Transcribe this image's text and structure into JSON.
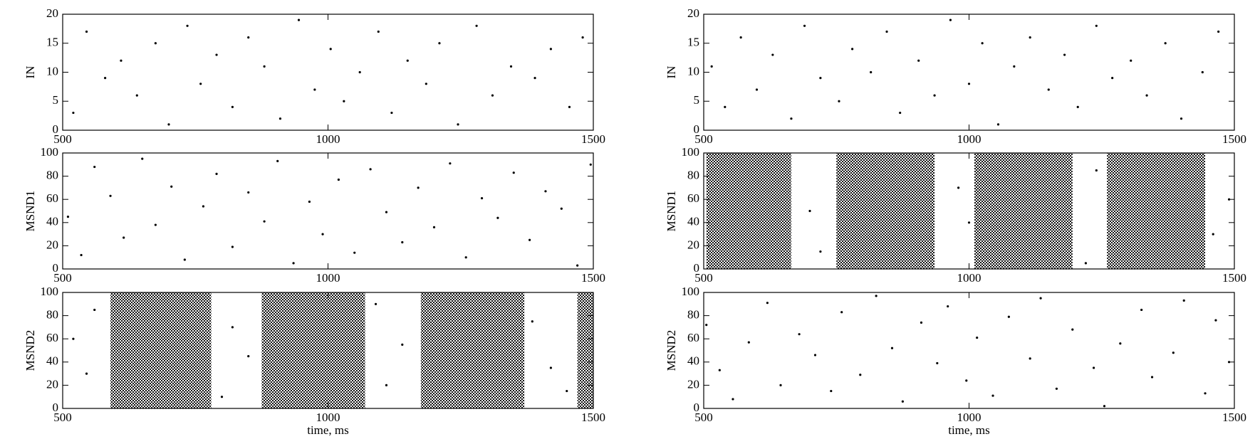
{
  "chart_data": [
    {
      "type": "scatter",
      "ylabel": "IN",
      "xlim": [
        500,
        1500
      ],
      "xticks": [
        500,
        1000,
        1500
      ],
      "ylim": [
        0,
        20
      ],
      "yticks": [
        0,
        5,
        10,
        15,
        20
      ],
      "color": "#000000",
      "x": [
        520,
        545,
        580,
        610,
        640,
        675,
        700,
        735,
        760,
        790,
        820,
        850,
        880,
        910,
        945,
        975,
        1005,
        1030,
        1060,
        1095,
        1120,
        1150,
        1185,
        1210,
        1245,
        1280,
        1310,
        1345,
        1390,
        1420,
        1455,
        1480
      ],
      "y": [
        3,
        17,
        9,
        12,
        6,
        15,
        1,
        18,
        8,
        13,
        4,
        16,
        11,
        2,
        19,
        7,
        14,
        5,
        10,
        17,
        3,
        12,
        8,
        15,
        1,
        18,
        6,
        11,
        9,
        14,
        4,
        16
      ]
    },
    {
      "type": "scatter",
      "ylabel": "MSND1",
      "xlim": [
        500,
        1500
      ],
      "xticks": [
        500,
        1000,
        1500
      ],
      "ylim": [
        0,
        100
      ],
      "yticks": [
        0,
        20,
        40,
        60,
        80,
        100
      ],
      "color": "#000000",
      "x": [
        510,
        535,
        560,
        590,
        615,
        650,
        675,
        705,
        730,
        765,
        790,
        820,
        850,
        880,
        905,
        935,
        965,
        990,
        1020,
        1050,
        1080,
        1110,
        1140,
        1170,
        1200,
        1230,
        1260,
        1290,
        1320,
        1350,
        1380,
        1410,
        1440,
        1470,
        1495
      ],
      "y": [
        45,
        12,
        88,
        63,
        27,
        95,
        38,
        71,
        8,
        54,
        82,
        19,
        66,
        41,
        93,
        5,
        58,
        30,
        77,
        14,
        86,
        49,
        23,
        70,
        36,
        91,
        10,
        61,
        44,
        83,
        25,
        67,
        52,
        3,
        90
      ]
    },
    {
      "type": "scatter",
      "ylabel": "MSND2",
      "xlabel": "time, ms",
      "xlim": [
        500,
        1500
      ],
      "xticks": [
        500,
        1000,
        1500
      ],
      "ylim": [
        0,
        100
      ],
      "yticks": [
        0,
        20,
        40,
        60,
        80,
        100
      ],
      "color": "#000000",
      "bursts": [
        [
          590,
          780
        ],
        [
          875,
          1070
        ],
        [
          1175,
          1370
        ],
        [
          1470,
          1500
        ]
      ],
      "x": [
        520,
        545,
        560,
        800,
        820,
        850,
        1090,
        1110,
        1140,
        1385,
        1420,
        1450
      ],
      "y": [
        60,
        30,
        85,
        10,
        70,
        45,
        90,
        20,
        55,
        75,
        35,
        15
      ]
    },
    {
      "type": "scatter",
      "ylabel": "IN",
      "xlim": [
        500,
        1500
      ],
      "xticks": [
        500,
        1000,
        1500
      ],
      "ylim": [
        0,
        20
      ],
      "yticks": [
        0,
        5,
        10,
        15,
        20
      ],
      "color": "#000000",
      "x": [
        515,
        540,
        570,
        600,
        630,
        665,
        690,
        720,
        755,
        780,
        815,
        845,
        870,
        905,
        935,
        965,
        1000,
        1025,
        1055,
        1085,
        1115,
        1150,
        1180,
        1205,
        1240,
        1270,
        1305,
        1335,
        1370,
        1400,
        1440,
        1470
      ],
      "y": [
        11,
        4,
        16,
        7,
        13,
        2,
        18,
        9,
        5,
        14,
        10,
        17,
        3,
        12,
        6,
        19,
        8,
        15,
        1,
        11,
        16,
        7,
        13,
        4,
        18,
        9,
        12,
        6,
        15,
        2,
        10,
        17
      ]
    },
    {
      "type": "scatter",
      "ylabel": "MSND1",
      "xlim": [
        500,
        1500
      ],
      "xticks": [
        500,
        1000,
        1500
      ],
      "ylim": [
        0,
        100
      ],
      "yticks": [
        0,
        20,
        40,
        60,
        80,
        100
      ],
      "color": "#000000",
      "bursts": [
        [
          505,
          665
        ],
        [
          750,
          935
        ],
        [
          1010,
          1195
        ],
        [
          1260,
          1445
        ]
      ],
      "x": [
        700,
        720,
        980,
        1000,
        1220,
        1240,
        1460,
        1490
      ],
      "y": [
        50,
        15,
        70,
        40,
        5,
        85,
        30,
        60
      ]
    },
    {
      "type": "scatter",
      "ylabel": "MSND2",
      "xlabel": "time, ms",
      "xlim": [
        500,
        1500
      ],
      "xticks": [
        500,
        1000,
        1500
      ],
      "ylim": [
        0,
        100
      ],
      "yticks": [
        0,
        20,
        40,
        60,
        80,
        100
      ],
      "color": "#000000",
      "x": [
        505,
        530,
        555,
        585,
        620,
        645,
        680,
        710,
        740,
        760,
        795,
        825,
        855,
        875,
        910,
        940,
        960,
        995,
        1015,
        1045,
        1075,
        1115,
        1135,
        1165,
        1195,
        1235,
        1255,
        1285,
        1325,
        1345,
        1385,
        1405,
        1445,
        1465,
        1490
      ],
      "y": [
        72,
        33,
        8,
        57,
        91,
        20,
        64,
        46,
        15,
        83,
        29,
        97,
        52,
        6,
        74,
        39,
        88,
        24,
        61,
        11,
        79,
        43,
        95,
        17,
        68,
        35,
        2,
        56,
        85,
        27,
        48,
        93,
        13,
        76,
        40
      ]
    }
  ]
}
